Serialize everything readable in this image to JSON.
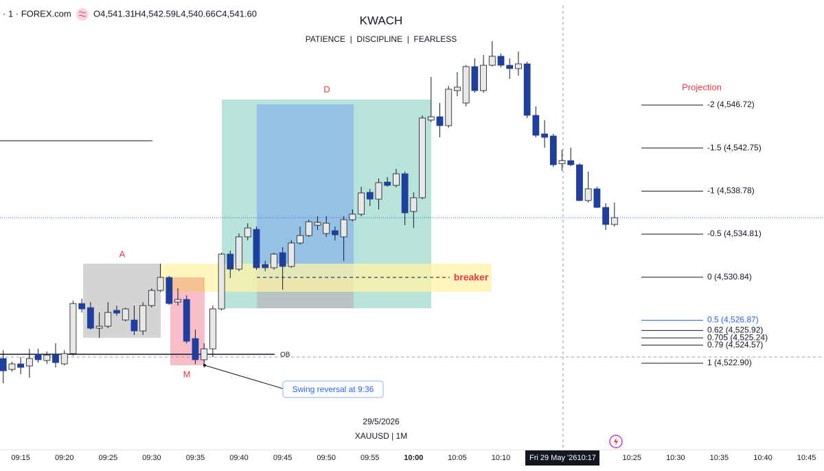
{
  "chart_data": {
    "type": "candlestick",
    "symbol": "· 1 · FOREX.com",
    "ohlc_header": {
      "open": "O4,541.31",
      "high": "H4,542.59",
      "low": "L4,540.66",
      "close": "C4,541.60"
    },
    "title": "KWACH",
    "subtitle": "PATIENCE  |  DISCIPLINE  |  FEARLESS",
    "date_label": "29/5/2026",
    "instrument": "XAUUSD | 1M",
    "crosshair": {
      "date": "Fri 29 May '26",
      "time": "10:17"
    },
    "annotations": {
      "a": "A",
      "d": "D",
      "m": "M",
      "breaker": "breaker",
      "ob": "OB",
      "swing": "Swing reversal at 9:36"
    },
    "up_color": "#e8e8e8",
    "down_color": "#1f3f9e",
    "x": [
      "09:13",
      "09:14",
      "09:15",
      "09:16",
      "09:17",
      "09:18",
      "09:19",
      "09:20",
      "09:21",
      "09:22",
      "09:23",
      "09:24",
      "09:25",
      "09:26",
      "09:27",
      "09:28",
      "09:29",
      "09:30",
      "09:31",
      "09:32",
      "09:33",
      "09:34",
      "09:35",
      "09:36",
      "09:37",
      "09:38",
      "09:39",
      "09:40",
      "09:41",
      "09:42",
      "09:43",
      "09:44",
      "09:45",
      "09:46",
      "09:47",
      "09:48",
      "09:49",
      "09:50",
      "09:51",
      "09:52",
      "09:53",
      "09:54",
      "09:55",
      "09:56",
      "09:57",
      "09:58",
      "09:59",
      "10:00",
      "10:01",
      "10:02",
      "10:03",
      "10:04",
      "10:05",
      "10:06",
      "10:07",
      "10:08",
      "10:09",
      "10:10",
      "10:11",
      "10:12",
      "10:13",
      "10:14",
      "10:15",
      "10:16",
      "10:17",
      "10:18",
      "10:19",
      "10:20",
      "10:21",
      "10:22",
      "10:23"
    ],
    "open": [
      4523.34,
      4522.33,
      4522.84,
      4522.65,
      4523.72,
      4523.15,
      4523.66,
      4522.84,
      4523.79,
      4528.41,
      4528.03,
      4526.13,
      4526.32,
      4527.78,
      4526.89,
      4526.89,
      4525.88,
      4528.22,
      4529.62,
      4530.82,
      4528.54,
      4528.79,
      4525.18,
      4523.22,
      4524.23,
      4527.91,
      4532.97,
      4531.58,
      4534.56,
      4535.25,
      4532.02,
      4531.71,
      4533.1,
      4531.83,
      4533.99,
      4534.68,
      4535.63,
      4534.87,
      4535.13,
      4534.56,
      4536.14,
      4536.65,
      4538.67,
      4538.04,
      4539.62,
      4539.31,
      4540.38,
      4536.9,
      4538.17,
      4545.33,
      4545.64,
      4544.82,
      4548.05,
      4546.91,
      4550.27,
      4548.05,
      4550.39,
      4551.22,
      4550.39,
      4550.08,
      4550.52,
      4545.77,
      4544.06,
      4543.87,
      4541.31,
      4541.59,
      4541.21,
      4537.91,
      4538.99,
      4537.28,
      4535.7
    ],
    "high": [
      4524.1,
      4523.03,
      4523.47,
      4524.23,
      4524.23,
      4523.98,
      4524.74,
      4524.1,
      4528.67,
      4528.86,
      4528.54,
      4527.59,
      4528.54,
      4528.22,
      4528.03,
      4528.22,
      4528.54,
      4529.81,
      4532.09,
      4530.95,
      4529.81,
      4529.17,
      4526.0,
      4524.74,
      4528.22,
      4533.1,
      4533.29,
      4534.87,
      4535.82,
      4535.51,
      4532.34,
      4533.1,
      4533.61,
      4534.24,
      4535.51,
      4536.14,
      4536.46,
      4536.46,
      4535.51,
      4536.46,
      4537.09,
      4539.18,
      4538.99,
      4539.94,
      4540.07,
      4540.83,
      4540.58,
      4538.67,
      4545.77,
      4549.32,
      4546.91,
      4548.49,
      4549.76,
      4550.39,
      4551.03,
      4551.34,
      4552.61,
      4551.47,
      4551.03,
      4551.66,
      4550.71,
      4546.59,
      4545.33,
      4544.06,
      4542.59,
      4542.79,
      4541.34,
      4540.58,
      4539.18,
      4537.66,
      4537.72
    ],
    "low": [
      4521.06,
      4522.14,
      4521.89,
      4521.57,
      4522.96,
      4522.84,
      4522.52,
      4522.71,
      4523.6,
      4527.59,
      4526.0,
      4525.24,
      4526.13,
      4527.27,
      4526.76,
      4525.5,
      4525.5,
      4528.03,
      4529.49,
      4528.29,
      4528.22,
      4524.74,
      4522.84,
      4522.52,
      4523.47,
      4527.78,
      4530.76,
      4531.39,
      4534.24,
      4531.52,
      4531.39,
      4531.52,
      4529.68,
      4531.71,
      4533.86,
      4534.56,
      4535.19,
      4534.56,
      4534.24,
      4532.34,
      4536.01,
      4536.46,
      4537.41,
      4537.09,
      4539.18,
      4539.12,
      4535.63,
      4535.38,
      4538.04,
      4545.14,
      4543.74,
      4544.63,
      4547.54,
      4546.59,
      4547.86,
      4547.86,
      4550.27,
      4550.2,
      4549.13,
      4549.44,
      4545.52,
      4543.74,
      4542.79,
      4541.02,
      4540.66,
      4541.08,
      4537.85,
      4537.72,
      4537.22,
      4535.19,
      4535.51
    ],
    "close": [
      4522.2,
      4522.84,
      4522.52,
      4523.34,
      4523.22,
      4523.66,
      4522.96,
      4523.79,
      4528.41,
      4527.91,
      4526.13,
      4526.32,
      4527.59,
      4527.52,
      4527.91,
      4525.88,
      4528.22,
      4529.62,
      4530.82,
      4528.41,
      4528.79,
      4524.93,
      4523.22,
      4524.23,
      4527.91,
      4532.97,
      4531.58,
      4534.56,
      4535.38,
      4531.71,
      4531.71,
      4532.97,
      4531.83,
      4533.99,
      4534.68,
      4535.95,
      4535.89,
      4535.82,
      4534.75,
      4536.14,
      4536.65,
      4538.61,
      4538.04,
      4539.56,
      4539.31,
      4540.38,
      4536.77,
      4538.17,
      4545.52,
      4545.64,
      4544.82,
      4548.18,
      4548.37,
      4550.27,
      4548.05,
      4550.39,
      4551.22,
      4550.39,
      4550.08,
      4550.52,
      4545.77,
      4543.93,
      4543.74,
      4541.21,
      4541.6,
      4541.21,
      4537.91,
      4538.99,
      4537.28,
      4535.7,
      4536.33
    ],
    "xlim": [
      "09:12",
      "10:47"
    ],
    "xticks": [
      "09:15",
      "09:20",
      "09:25",
      "09:30",
      "09:35",
      "09:40",
      "09:45",
      "09:50",
      "09:55",
      "10:00",
      "10:05",
      "10:10",
      "10:25",
      "10:30",
      "10:35",
      "10:40",
      "10:45"
    ],
    "ylim": [
      4515.24,
      4556.41
    ],
    "projection": {
      "title": "Projection",
      "levels": [
        {
          "value": 4546.72,
          "label": "-2 (4,546.72)",
          "color": "#131722"
        },
        {
          "value": 4542.75,
          "label": "-1.5 (4,542.75)",
          "color": "#131722"
        },
        {
          "value": 4538.78,
          "label": "-1 (4,538.78)",
          "color": "#131722"
        },
        {
          "value": 4534.81,
          "label": "-0.5 (4,534.81)",
          "color": "#131722"
        },
        {
          "value": 4530.84,
          "label": "0 (4,530.84)",
          "color": "#131722"
        },
        {
          "value": 4526.87,
          "label": "0.5 (4,526.87)",
          "color": "#2962ff"
        },
        {
          "value": 4525.92,
          "label": "0.62 (4,525.92)",
          "color": "#131722"
        },
        {
          "value": 4525.24,
          "label": "0.705 (4,525.24)",
          "color": "#131722"
        },
        {
          "value": 4524.57,
          "label": "0.79 (4,524.57)",
          "color": "#131722"
        },
        {
          "value": 4522.9,
          "label": "1 (4,522.90)",
          "color": "#131722"
        }
      ]
    }
  }
}
